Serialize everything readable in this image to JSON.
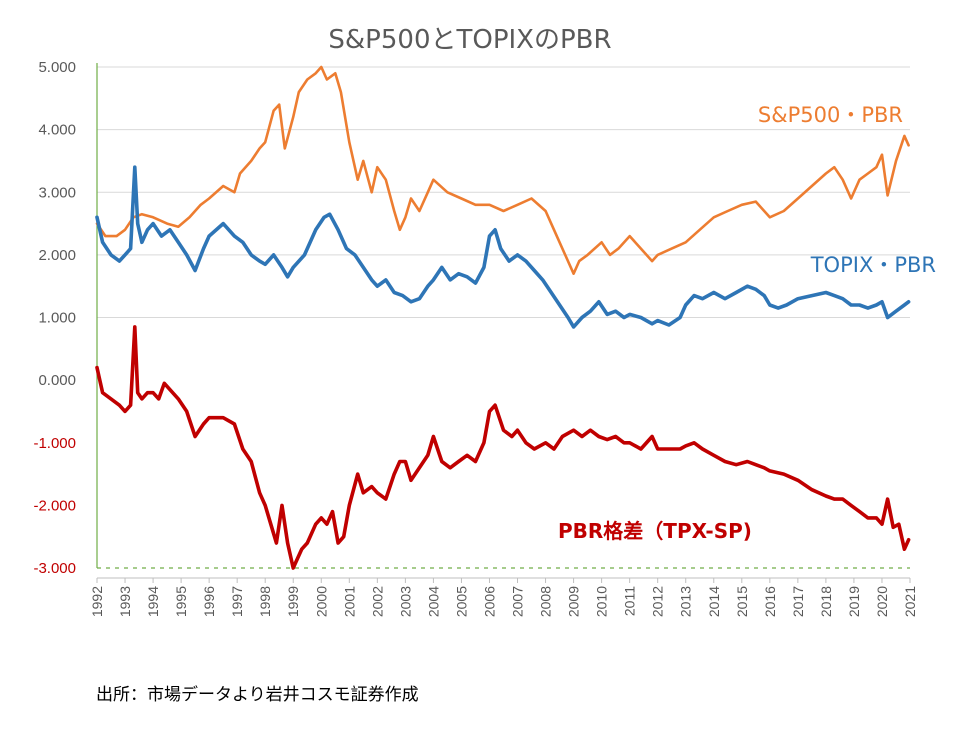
{
  "chart_data": {
    "type": "line",
    "title": "S&P500とTOPIXのPBR",
    "x_ticks": [
      "1992",
      "1993",
      "1994",
      "1995",
      "1996",
      "1997",
      "1998",
      "1999",
      "2000",
      "2001",
      "2002",
      "2003",
      "2004",
      "2005",
      "2006",
      "2007",
      "2008",
      "2009",
      "2010",
      "2011",
      "2012",
      "2013",
      "2014",
      "2015",
      "2016",
      "2017",
      "2018",
      "2019",
      "2020",
      "2021"
    ],
    "y_ticks": [
      {
        "value": 5,
        "label": "5.000"
      },
      {
        "value": 4,
        "label": "4.000"
      },
      {
        "value": 3,
        "label": "3.000"
      },
      {
        "value": 2,
        "label": "2.000"
      },
      {
        "value": 1,
        "label": "1.000"
      },
      {
        "value": 0,
        "label": "0.000"
      },
      {
        "value": -1,
        "label": "-1.000"
      },
      {
        "value": -2,
        "label": "-2.000"
      },
      {
        "value": -3,
        "label": "-3.000"
      }
    ],
    "ylim": [
      -3,
      5
    ],
    "xlim": [
      1992,
      2021
    ],
    "series": [
      {
        "name": "S&P500・PBR",
        "color": "#ED7D31",
        "points": [
          [
            1992.0,
            2.5
          ],
          [
            1992.3,
            2.3
          ],
          [
            1992.7,
            2.3
          ],
          [
            1993.0,
            2.4
          ],
          [
            1993.3,
            2.6
          ],
          [
            1993.6,
            2.65
          ],
          [
            1994.0,
            2.6
          ],
          [
            1994.5,
            2.5
          ],
          [
            1994.9,
            2.45
          ],
          [
            1995.3,
            2.6
          ],
          [
            1995.7,
            2.8
          ],
          [
            1996.0,
            2.9
          ],
          [
            1996.5,
            3.1
          ],
          [
            1996.9,
            3.0
          ],
          [
            1997.1,
            3.3
          ],
          [
            1997.5,
            3.5
          ],
          [
            1997.8,
            3.7
          ],
          [
            1998.0,
            3.8
          ],
          [
            1998.3,
            4.3
          ],
          [
            1998.5,
            4.4
          ],
          [
            1998.7,
            3.7
          ],
          [
            1999.0,
            4.2
          ],
          [
            1999.2,
            4.6
          ],
          [
            1999.5,
            4.8
          ],
          [
            1999.8,
            4.9
          ],
          [
            2000.0,
            5.0
          ],
          [
            2000.2,
            4.8
          ],
          [
            2000.5,
            4.9
          ],
          [
            2000.7,
            4.6
          ],
          [
            2001.0,
            3.8
          ],
          [
            2001.3,
            3.2
          ],
          [
            2001.5,
            3.5
          ],
          [
            2001.8,
            3.0
          ],
          [
            2002.0,
            3.4
          ],
          [
            2002.3,
            3.2
          ],
          [
            2002.6,
            2.7
          ],
          [
            2002.8,
            2.4
          ],
          [
            2003.0,
            2.6
          ],
          [
            2003.2,
            2.9
          ],
          [
            2003.5,
            2.7
          ],
          [
            2003.8,
            3.0
          ],
          [
            2004.0,
            3.2
          ],
          [
            2004.5,
            3.0
          ],
          [
            2005.0,
            2.9
          ],
          [
            2005.5,
            2.8
          ],
          [
            2006.0,
            2.8
          ],
          [
            2006.5,
            2.7
          ],
          [
            2007.0,
            2.8
          ],
          [
            2007.5,
            2.9
          ],
          [
            2008.0,
            2.7
          ],
          [
            2008.3,
            2.4
          ],
          [
            2008.7,
            2.0
          ],
          [
            2009.0,
            1.7
          ],
          [
            2009.2,
            1.9
          ],
          [
            2009.5,
            2.0
          ],
          [
            2010.0,
            2.2
          ],
          [
            2010.3,
            2.0
          ],
          [
            2010.6,
            2.1
          ],
          [
            2011.0,
            2.3
          ],
          [
            2011.4,
            2.1
          ],
          [
            2011.8,
            1.9
          ],
          [
            2012.0,
            2.0
          ],
          [
            2012.5,
            2.1
          ],
          [
            2013.0,
            2.2
          ],
          [
            2013.5,
            2.4
          ],
          [
            2014.0,
            2.6
          ],
          [
            2014.5,
            2.7
          ],
          [
            2015.0,
            2.8
          ],
          [
            2015.5,
            2.85
          ],
          [
            2016.0,
            2.6
          ],
          [
            2016.5,
            2.7
          ],
          [
            2017.0,
            2.9
          ],
          [
            2017.5,
            3.1
          ],
          [
            2018.0,
            3.3
          ],
          [
            2018.3,
            3.4
          ],
          [
            2018.6,
            3.2
          ],
          [
            2018.9,
            2.9
          ],
          [
            2019.2,
            3.2
          ],
          [
            2019.5,
            3.3
          ],
          [
            2019.8,
            3.4
          ],
          [
            2020.0,
            3.6
          ],
          [
            2020.2,
            2.95
          ],
          [
            2020.5,
            3.5
          ],
          [
            2020.8,
            3.9
          ],
          [
            2020.95,
            3.75
          ]
        ]
      },
      {
        "name": "TOPIX・PBR",
        "color": "#2E75B6",
        "points": [
          [
            1992.0,
            2.6
          ],
          [
            1992.2,
            2.2
          ],
          [
            1992.5,
            2.0
          ],
          [
            1992.8,
            1.9
          ],
          [
            1993.0,
            2.0
          ],
          [
            1993.2,
            2.1
          ],
          [
            1993.35,
            3.4
          ],
          [
            1993.45,
            2.5
          ],
          [
            1993.6,
            2.2
          ],
          [
            1993.8,
            2.4
          ],
          [
            1994.0,
            2.5
          ],
          [
            1994.3,
            2.3
          ],
          [
            1994.6,
            2.4
          ],
          [
            1994.9,
            2.2
          ],
          [
            1995.2,
            2.0
          ],
          [
            1995.5,
            1.75
          ],
          [
            1995.8,
            2.1
          ],
          [
            1996.0,
            2.3
          ],
          [
            1996.5,
            2.5
          ],
          [
            1996.9,
            2.3
          ],
          [
            1997.2,
            2.2
          ],
          [
            1997.5,
            2.0
          ],
          [
            1997.8,
            1.9
          ],
          [
            1998.0,
            1.85
          ],
          [
            1998.3,
            2.0
          ],
          [
            1998.6,
            1.8
          ],
          [
            1998.8,
            1.65
          ],
          [
            1999.0,
            1.8
          ],
          [
            1999.4,
            2.0
          ],
          [
            1999.8,
            2.4
          ],
          [
            2000.1,
            2.6
          ],
          [
            2000.3,
            2.65
          ],
          [
            2000.6,
            2.4
          ],
          [
            2000.9,
            2.1
          ],
          [
            2001.2,
            2.0
          ],
          [
            2001.5,
            1.8
          ],
          [
            2001.8,
            1.6
          ],
          [
            2002.0,
            1.5
          ],
          [
            2002.3,
            1.6
          ],
          [
            2002.6,
            1.4
          ],
          [
            2002.9,
            1.35
          ],
          [
            2003.2,
            1.25
          ],
          [
            2003.5,
            1.3
          ],
          [
            2003.8,
            1.5
          ],
          [
            2004.0,
            1.6
          ],
          [
            2004.3,
            1.8
          ],
          [
            2004.6,
            1.6
          ],
          [
            2004.9,
            1.7
          ],
          [
            2005.2,
            1.65
          ],
          [
            2005.5,
            1.55
          ],
          [
            2005.8,
            1.8
          ],
          [
            2006.0,
            2.3
          ],
          [
            2006.2,
            2.4
          ],
          [
            2006.4,
            2.1
          ],
          [
            2006.7,
            1.9
          ],
          [
            2007.0,
            2.0
          ],
          [
            2007.3,
            1.9
          ],
          [
            2007.6,
            1.75
          ],
          [
            2007.9,
            1.6
          ],
          [
            2008.2,
            1.4
          ],
          [
            2008.5,
            1.2
          ],
          [
            2008.8,
            1.0
          ],
          [
            2009.0,
            0.85
          ],
          [
            2009.3,
            1.0
          ],
          [
            2009.6,
            1.1
          ],
          [
            2009.9,
            1.25
          ],
          [
            2010.2,
            1.05
          ],
          [
            2010.5,
            1.1
          ],
          [
            2010.8,
            1.0
          ],
          [
            2011.0,
            1.05
          ],
          [
            2011.4,
            1.0
          ],
          [
            2011.8,
            0.9
          ],
          [
            2012.0,
            0.95
          ],
          [
            2012.4,
            0.88
          ],
          [
            2012.8,
            1.0
          ],
          [
            2013.0,
            1.2
          ],
          [
            2013.3,
            1.35
          ],
          [
            2013.6,
            1.3
          ],
          [
            2014.0,
            1.4
          ],
          [
            2014.4,
            1.3
          ],
          [
            2014.8,
            1.4
          ],
          [
            2015.2,
            1.5
          ],
          [
            2015.5,
            1.45
          ],
          [
            2015.8,
            1.35
          ],
          [
            2016.0,
            1.2
          ],
          [
            2016.3,
            1.15
          ],
          [
            2016.6,
            1.2
          ],
          [
            2017.0,
            1.3
          ],
          [
            2017.5,
            1.35
          ],
          [
            2018.0,
            1.4
          ],
          [
            2018.3,
            1.35
          ],
          [
            2018.6,
            1.3
          ],
          [
            2018.9,
            1.2
          ],
          [
            2019.2,
            1.2
          ],
          [
            2019.5,
            1.15
          ],
          [
            2019.8,
            1.2
          ],
          [
            2020.0,
            1.25
          ],
          [
            2020.2,
            1.0
          ],
          [
            2020.5,
            1.1
          ],
          [
            2020.8,
            1.2
          ],
          [
            2020.95,
            1.25
          ]
        ]
      },
      {
        "name": "PBR格差（TPX-SP)",
        "color": "#C00000",
        "points": [
          [
            1992.0,
            0.2
          ],
          [
            1992.2,
            -0.2
          ],
          [
            1992.5,
            -0.3
          ],
          [
            1992.8,
            -0.4
          ],
          [
            1993.0,
            -0.5
          ],
          [
            1993.2,
            -0.4
          ],
          [
            1993.35,
            0.85
          ],
          [
            1993.45,
            -0.2
          ],
          [
            1993.6,
            -0.3
          ],
          [
            1993.8,
            -0.2
          ],
          [
            1994.0,
            -0.2
          ],
          [
            1994.2,
            -0.3
          ],
          [
            1994.4,
            -0.05
          ],
          [
            1994.7,
            -0.2
          ],
          [
            1994.9,
            -0.3
          ],
          [
            1995.2,
            -0.5
          ],
          [
            1995.5,
            -0.9
          ],
          [
            1995.8,
            -0.7
          ],
          [
            1996.0,
            -0.6
          ],
          [
            1996.5,
            -0.6
          ],
          [
            1996.9,
            -0.7
          ],
          [
            1997.2,
            -1.1
          ],
          [
            1997.5,
            -1.3
          ],
          [
            1997.8,
            -1.8
          ],
          [
            1998.0,
            -2.0
          ],
          [
            1998.2,
            -2.3
          ],
          [
            1998.4,
            -2.6
          ],
          [
            1998.6,
            -2.0
          ],
          [
            1998.8,
            -2.6
          ],
          [
            1999.0,
            -3.0
          ],
          [
            1999.3,
            -2.7
          ],
          [
            1999.5,
            -2.6
          ],
          [
            1999.8,
            -2.3
          ],
          [
            2000.0,
            -2.2
          ],
          [
            2000.2,
            -2.3
          ],
          [
            2000.4,
            -2.1
          ],
          [
            2000.6,
            -2.6
          ],
          [
            2000.8,
            -2.5
          ],
          [
            2001.0,
            -2.0
          ],
          [
            2001.3,
            -1.5
          ],
          [
            2001.5,
            -1.8
          ],
          [
            2001.8,
            -1.7
          ],
          [
            2002.0,
            -1.8
          ],
          [
            2002.3,
            -1.9
          ],
          [
            2002.6,
            -1.5
          ],
          [
            2002.8,
            -1.3
          ],
          [
            2003.0,
            -1.3
          ],
          [
            2003.2,
            -1.6
          ],
          [
            2003.5,
            -1.4
          ],
          [
            2003.8,
            -1.2
          ],
          [
            2004.0,
            -0.9
          ],
          [
            2004.3,
            -1.3
          ],
          [
            2004.6,
            -1.4
          ],
          [
            2004.9,
            -1.3
          ],
          [
            2005.2,
            -1.2
          ],
          [
            2005.5,
            -1.3
          ],
          [
            2005.8,
            -1.0
          ],
          [
            2006.0,
            -0.5
          ],
          [
            2006.2,
            -0.4
          ],
          [
            2006.5,
            -0.8
          ],
          [
            2006.8,
            -0.9
          ],
          [
            2007.0,
            -0.8
          ],
          [
            2007.3,
            -1.0
          ],
          [
            2007.6,
            -1.1
          ],
          [
            2008.0,
            -1.0
          ],
          [
            2008.3,
            -1.1
          ],
          [
            2008.6,
            -0.9
          ],
          [
            2009.0,
            -0.8
          ],
          [
            2009.3,
            -0.9
          ],
          [
            2009.6,
            -0.8
          ],
          [
            2009.9,
            -0.9
          ],
          [
            2010.2,
            -0.95
          ],
          [
            2010.5,
            -0.9
          ],
          [
            2010.8,
            -1.0
          ],
          [
            2011.0,
            -1.0
          ],
          [
            2011.4,
            -1.1
          ],
          [
            2011.8,
            -0.9
          ],
          [
            2012.0,
            -1.1
          ],
          [
            2012.4,
            -1.1
          ],
          [
            2012.8,
            -1.1
          ],
          [
            2013.0,
            -1.05
          ],
          [
            2013.3,
            -1.0
          ],
          [
            2013.6,
            -1.1
          ],
          [
            2014.0,
            -1.2
          ],
          [
            2014.4,
            -1.3
          ],
          [
            2014.8,
            -1.35
          ],
          [
            2015.2,
            -1.3
          ],
          [
            2015.5,
            -1.35
          ],
          [
            2015.8,
            -1.4
          ],
          [
            2016.0,
            -1.45
          ],
          [
            2016.5,
            -1.5
          ],
          [
            2017.0,
            -1.6
          ],
          [
            2017.5,
            -1.75
          ],
          [
            2018.0,
            -1.85
          ],
          [
            2018.3,
            -1.9
          ],
          [
            2018.6,
            -1.9
          ],
          [
            2018.9,
            -2.0
          ],
          [
            2019.2,
            -2.1
          ],
          [
            2019.5,
            -2.2
          ],
          [
            2019.8,
            -2.2
          ],
          [
            2020.0,
            -2.3
          ],
          [
            2020.2,
            -1.9
          ],
          [
            2020.4,
            -2.35
          ],
          [
            2020.6,
            -2.3
          ],
          [
            2020.8,
            -2.7
          ],
          [
            2020.95,
            -2.55
          ]
        ]
      }
    ]
  },
  "source_note": "出所：市場データより岩井コスモ証券作成"
}
